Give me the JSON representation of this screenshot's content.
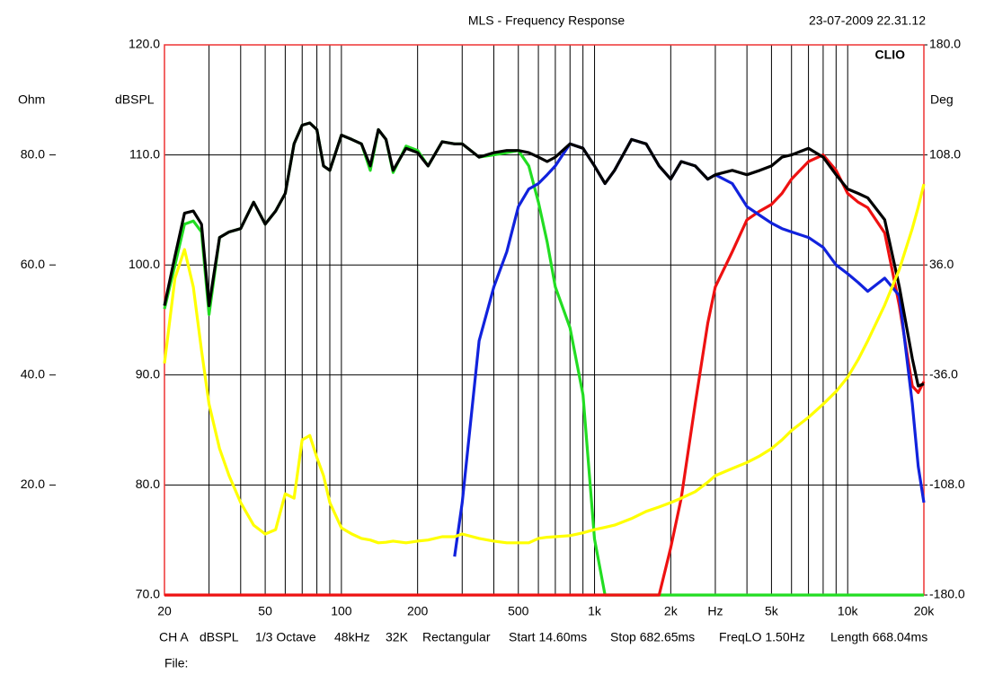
{
  "chart_data": {
    "type": "line",
    "title": "MLS - Frequency Response",
    "timestamp": "23-07-2009 22.31.12",
    "brand": "CLIO",
    "ylabel": "dBSPL",
    "y2label": "Deg",
    "y3label": "Ohm",
    "log_x": true,
    "xlim": [
      20,
      20000
    ],
    "xticks": [
      20,
      50,
      100,
      200,
      500,
      {
        "value": 1000,
        "label": "1k"
      },
      {
        "value": 2000,
        "label": "2k"
      },
      {
        "value": 3000,
        "label": "Hz"
      },
      {
        "value": 5000,
        "label": "5k"
      },
      {
        "value": 10000,
        "label": "10k"
      },
      {
        "value": 20000,
        "label": "20k"
      }
    ],
    "xgrid": [
      30,
      40,
      50,
      60,
      70,
      80,
      90,
      100,
      200,
      300,
      400,
      500,
      600,
      700,
      800,
      900,
      1000,
      2000,
      3000,
      4000,
      5000,
      6000,
      7000,
      8000,
      9000,
      10000
    ],
    "ylim": [
      70,
      120
    ],
    "yticks": [
      {
        "value": 70,
        "label": "70.0"
      },
      {
        "value": 80,
        "label": "80.0"
      },
      {
        "value": 90,
        "label": "90.0"
      },
      {
        "value": 100,
        "label": "100.0"
      },
      {
        "value": 110,
        "label": "110.0"
      },
      {
        "value": 120,
        "label": "120.0"
      }
    ],
    "y2lim": [
      -180,
      180
    ],
    "y2ticks": [
      {
        "value": -180,
        "label": "-180.0"
      },
      {
        "value": -108,
        "label": "-108.0"
      },
      {
        "value": -36,
        "label": "-36.0"
      },
      {
        "value": 36,
        "label": "36.0"
      },
      {
        "value": 108,
        "label": "108.0"
      },
      {
        "value": 180,
        "label": "180.0"
      }
    ],
    "y3lim": [
      0,
      100
    ],
    "y3ticks": [
      {
        "value": 20,
        "label": "20.0"
      },
      {
        "value": 40,
        "label": "40.0"
      },
      {
        "value": 60,
        "label": "60.0"
      },
      {
        "value": 80,
        "label": "80.0"
      }
    ],
    "grid": true,
    "x": [
      20,
      22,
      24,
      26,
      28,
      30,
      33,
      36,
      40,
      45,
      50,
      55,
      60,
      65,
      70,
      75,
      80,
      85,
      90,
      100,
      110,
      120,
      130,
      140,
      150,
      160,
      180,
      200,
      220,
      250,
      280,
      300,
      350,
      400,
      450,
      500,
      550,
      600,
      650,
      700,
      800,
      900,
      1000,
      1100,
      1200,
      1400,
      1600,
      1800,
      2000,
      2200,
      2500,
      2800,
      3000,
      3500,
      4000,
      4500,
      5000,
      5500,
      6000,
      7000,
      8000,
      9000,
      10000,
      11000,
      12000,
      14000,
      16000,
      18000,
      19000,
      20000
    ],
    "series": [
      {
        "color": "#22dd22",
        "values": [
          96.0,
          100.0,
          103.7,
          104.0,
          103.0,
          95.5,
          102.5,
          103.0,
          103.3,
          105.7,
          103.7,
          104.9,
          106.5,
          111.0,
          112.7,
          112.9,
          112.3,
          109.0,
          108.6,
          111.8,
          111.4,
          111.0,
          108.6,
          112.3,
          111.4,
          108.4,
          110.8,
          110.4,
          109.0,
          111.2,
          111.0,
          111.0,
          109.8,
          110.0,
          110.2,
          110.4,
          109.0,
          105.7,
          102.1,
          98.0,
          94.3,
          88.2,
          75.1,
          70,
          70,
          70,
          70,
          70,
          70,
          70,
          70,
          70,
          70,
          70,
          70,
          70,
          70,
          70,
          70,
          70,
          70,
          70,
          70,
          70,
          70,
          70,
          70,
          70,
          70,
          70
        ]
      },
      {
        "color": "#ee1111",
        "values": [
          70,
          70,
          70,
          70,
          70,
          70,
          70,
          70,
          70,
          70,
          70,
          70,
          70,
          70,
          70,
          70,
          70,
          70,
          70,
          70,
          70,
          70,
          70,
          70,
          70,
          70,
          70,
          70,
          70,
          70,
          70,
          70,
          70,
          70,
          70,
          70,
          70,
          70,
          70,
          70,
          70,
          70,
          70,
          70,
          70,
          70,
          70,
          70,
          74.3,
          78.8,
          87.4,
          94.7,
          98.0,
          101.2,
          104.1,
          104.9,
          105.5,
          106.5,
          107.8,
          109.4,
          110.0,
          108.6,
          106.5,
          105.7,
          105.2,
          102.9,
          96.3,
          89.0,
          88.4,
          89.4
        ]
      },
      {
        "color": "#1122dd",
        "values": [
          null,
          null,
          null,
          null,
          null,
          null,
          null,
          null,
          null,
          null,
          null,
          null,
          null,
          null,
          null,
          null,
          null,
          null,
          null,
          null,
          null,
          null,
          null,
          null,
          null,
          null,
          null,
          null,
          null,
          null,
          73.5,
          78.4,
          93.1,
          98.0,
          101.2,
          105.3,
          106.9,
          107.4,
          108.2,
          109.0,
          111.0,
          110.6,
          109.0,
          107.4,
          108.6,
          111.4,
          111.0,
          109.0,
          107.8,
          109.4,
          109.0,
          107.8,
          108.2,
          107.4,
          105.3,
          104.5,
          103.8,
          103.3,
          103.0,
          102.5,
          101.6,
          100.0,
          99.2,
          98.4,
          97.6,
          98.8,
          97.2,
          87.4,
          81.7,
          78.4
        ]
      },
      {
        "color": "#000000",
        "values": [
          96.3,
          100.8,
          104.7,
          104.9,
          103.7,
          96.3,
          102.5,
          103.0,
          103.3,
          105.7,
          103.7,
          104.9,
          106.5,
          111.0,
          112.7,
          112.9,
          112.3,
          109.0,
          108.6,
          111.8,
          111.4,
          111.0,
          109.0,
          112.3,
          111.4,
          108.6,
          110.6,
          110.2,
          109.0,
          111.2,
          111.0,
          111.0,
          109.8,
          110.2,
          110.4,
          110.4,
          110.2,
          109.8,
          109.4,
          109.8,
          111.0,
          110.6,
          109.0,
          107.4,
          108.6,
          111.4,
          111.0,
          109.0,
          107.8,
          109.4,
          109.0,
          107.8,
          108.2,
          108.6,
          108.2,
          108.6,
          109.0,
          109.8,
          110.0,
          110.6,
          109.8,
          108.2,
          106.9,
          106.5,
          106.1,
          104.1,
          98.0,
          91.5,
          89.0,
          89.2
        ]
      },
      {
        "color": "#ffff00",
        "axis": "y3",
        "values": [
          42.1,
          57.6,
          62.8,
          56.0,
          44.5,
          34.7,
          26.6,
          21.7,
          16.8,
          12.7,
          11.1,
          11.9,
          18.4,
          17.6,
          28.2,
          29.0,
          25.0,
          21.7,
          16.8,
          12.2,
          11.1,
          10.3,
          10.0,
          9.5,
          9.6,
          9.8,
          9.5,
          9.8,
          10.0,
          10.6,
          10.6,
          11.1,
          10.3,
          9.8,
          9.5,
          9.5,
          9.5,
          10.3,
          10.5,
          10.6,
          10.8,
          11.3,
          11.9,
          12.3,
          12.7,
          13.9,
          15.2,
          16.0,
          16.8,
          17.6,
          18.8,
          20.5,
          21.7,
          23.0,
          24.1,
          25.3,
          26.6,
          28.2,
          29.9,
          32.3,
          34.7,
          37.0,
          39.6,
          42.8,
          46.2,
          52.7,
          59.2,
          66.6,
          70.5,
          74.7
        ]
      }
    ],
    "info": [
      "CH A",
      "dBSPL",
      "1/3 Octave",
      "48kHz",
      "32K",
      "Rectangular",
      "Start 14.60ms",
      "Stop 682.65ms",
      "FreqLO 1.50Hz",
      "Length 668.04ms"
    ],
    "file_label": "File:"
  }
}
